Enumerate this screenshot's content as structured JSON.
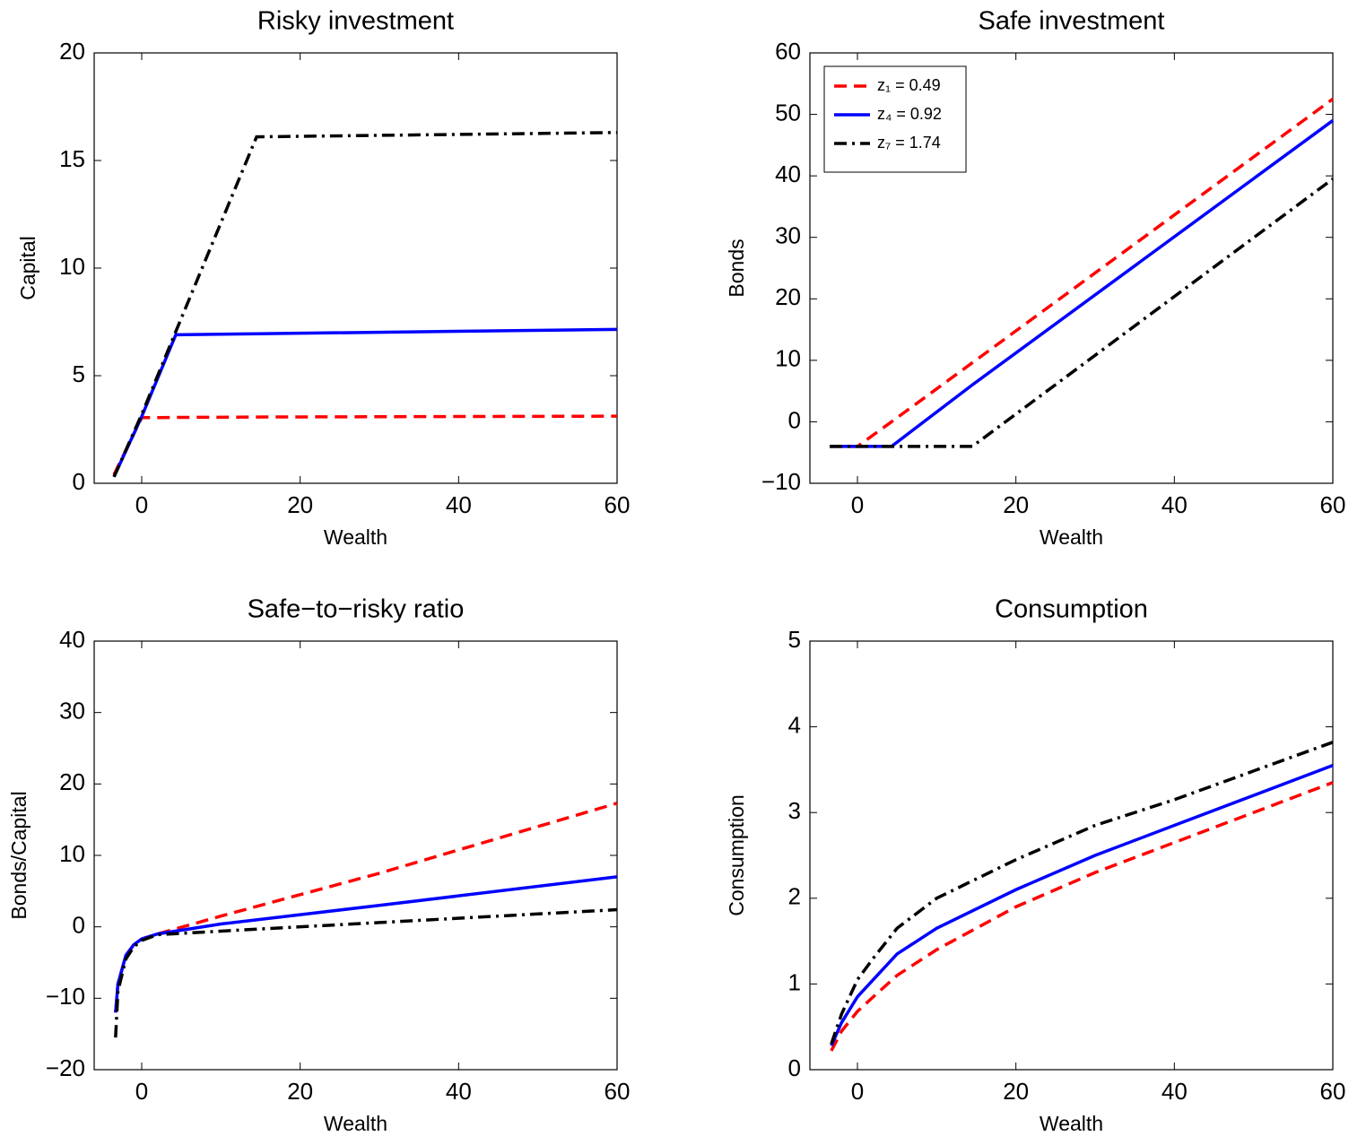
{
  "chart_data": [
    {
      "type": "line",
      "title": "Risky investment",
      "xlabel": "Wealth",
      "ylabel": "Capital",
      "x": [
        -3.5,
        0,
        4.3,
        14.5,
        60
      ],
      "series": [
        {
          "color": "#ff0000",
          "linestyle": "dashed",
          "values": [
            0.4,
            3.05,
            3.06,
            3.08,
            3.12
          ]
        },
        {
          "color": "#0000ff",
          "linestyle": "solid",
          "values": [
            0.3,
            3.1,
            6.9,
            6.95,
            7.15
          ]
        },
        {
          "color": "#000000",
          "linestyle": "dashdot",
          "values": [
            0.3,
            3.2,
            7.05,
            16.1,
            16.3
          ]
        }
      ],
      "xlim": [
        -6,
        60
      ],
      "xticks": [
        0,
        20,
        40,
        60
      ],
      "ylim": [
        0,
        20
      ],
      "yticks": [
        0,
        5,
        10,
        15,
        20
      ],
      "grid": false
    },
    {
      "type": "line",
      "title": "Safe investment",
      "xlabel": "Wealth",
      "ylabel": "Bonds",
      "x": [
        -3.5,
        0,
        4.3,
        14.5,
        60
      ],
      "series": [
        {
          "name": "z₁ = 0.49",
          "color": "#ff0000",
          "linestyle": "dashed",
          "values": [
            -4,
            -4,
            0,
            9.6,
            52.5
          ]
        },
        {
          "name": "z₄ = 0.92",
          "color": "#0000ff",
          "linestyle": "solid",
          "values": [
            -4,
            -4,
            -4,
            6,
            49
          ]
        },
        {
          "name": "z₇ = 1.74",
          "color": "#000000",
          "linestyle": "dashdot",
          "values": [
            -4,
            -4,
            -4,
            -4,
            39.5
          ]
        }
      ],
      "xlim": [
        -6,
        60
      ],
      "xticks": [
        0,
        20,
        40,
        60
      ],
      "ylim": [
        -10,
        60
      ],
      "yticks": [
        {
          "value": -10,
          "label": "−10"
        },
        0,
        10,
        20,
        30,
        40,
        50,
        60
      ],
      "grid": false,
      "legend": "upper left"
    },
    {
      "type": "line",
      "title": "Safe−to−risky ratio",
      "xlabel": "Wealth",
      "ylabel": "Bonds/Capital",
      "x": [
        -3.3,
        -3,
        -2,
        -1,
        0,
        2,
        10,
        30,
        60
      ],
      "series": [
        {
          "color": "#ff0000",
          "linestyle": "dashed",
          "values": [
            -12,
            -8,
            -4,
            -2.5,
            -1.7,
            -1,
            1.5,
            7.5,
            17.3
          ]
        },
        {
          "color": "#0000ff",
          "linestyle": "solid",
          "values": [
            -12,
            -8,
            -4,
            -2.5,
            -1.7,
            -1,
            0.4,
            3,
            7
          ]
        },
        {
          "color": "#000000",
          "linestyle": "dashdot",
          "values": [
            -15.5,
            -9,
            -4.5,
            -2.8,
            -1.9,
            -1.1,
            -0.6,
            0.6,
            2.4
          ]
        }
      ],
      "xlim": [
        -6,
        60
      ],
      "xticks": [
        0,
        20,
        40,
        60
      ],
      "ylim": [
        -20,
        40
      ],
      "yticks": [
        {
          "value": -20,
          "label": "−20"
        },
        {
          "value": -10,
          "label": "−10"
        },
        0,
        10,
        20,
        30,
        40
      ],
      "grid": false
    },
    {
      "type": "line",
      "title": "Consumption",
      "xlabel": "Wealth",
      "ylabel": "Consumption",
      "x": [
        -3.3,
        -2,
        0,
        2,
        5,
        10,
        20,
        30,
        40,
        60
      ],
      "series": [
        {
          "color": "#ff0000",
          "linestyle": "dashed",
          "values": [
            0.22,
            0.45,
            0.68,
            0.85,
            1.1,
            1.4,
            1.9,
            2.3,
            2.65,
            3.35
          ]
        },
        {
          "color": "#0000ff",
          "linestyle": "solid",
          "values": [
            0.28,
            0.55,
            0.85,
            1.05,
            1.35,
            1.65,
            2.1,
            2.5,
            2.85,
            3.55
          ]
        },
        {
          "color": "#000000",
          "linestyle": "dashdot",
          "values": [
            0.3,
            0.65,
            1.05,
            1.3,
            1.65,
            2.0,
            2.45,
            2.85,
            3.15,
            3.82
          ]
        }
      ],
      "xlim": [
        -6,
        60
      ],
      "xticks": [
        0,
        20,
        40,
        60
      ],
      "ylim": [
        0,
        5
      ],
      "yticks": [
        0,
        1,
        2,
        3,
        4,
        5
      ],
      "grid": false
    }
  ]
}
